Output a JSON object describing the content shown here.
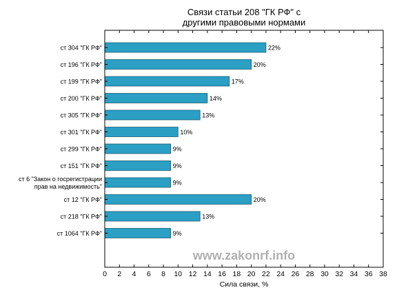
{
  "chart_data": {
    "type": "bar",
    "orientation": "horizontal",
    "title": "Связи статьи 208 \"ГК РФ\" с\nдругими правовыми нормами",
    "xlabel": "Сила связи, %",
    "ylabel": "",
    "xlim": [
      0,
      38
    ],
    "x_ticks": [
      0,
      2,
      4,
      6,
      8,
      10,
      12,
      14,
      16,
      18,
      20,
      22,
      24,
      26,
      28,
      30,
      32,
      34,
      36,
      38
    ],
    "grid": false,
    "categories": [
      "ст 304 \"ГК РФ\"",
      "ст 196 \"ГК РФ\"",
      "ст 199 \"ГК РФ\"",
      "ст 200 \"ГК РФ\"",
      "ст 305 \"ГК РФ\"",
      "ст 301 \"ГК РФ\"",
      "ст 299 \"ГК РФ\"",
      "ст 151 \"ГК РФ\"",
      "ст 6 \"Закон о госрегистрации\nправ на недвижимость\"",
      "ст 12 \"ГК РФ\"",
      "ст 218 \"ГК РФ\"",
      "ст 1064 \"ГК РФ\""
    ],
    "values": [
      22,
      20,
      17,
      14,
      13,
      10,
      9,
      9,
      9,
      20,
      13,
      9
    ],
    "value_labels": [
      "22%",
      "20%",
      "17%",
      "14%",
      "13%",
      "10%",
      "9%",
      "9%",
      "9%",
      "20%",
      "13%",
      "9%"
    ],
    "bar_color": "#2b9fc4",
    "bar_edge_color": "#1a5e75",
    "watermark": "www.zakonrf.info",
    "watermark_color": "#b0b0b0"
  }
}
